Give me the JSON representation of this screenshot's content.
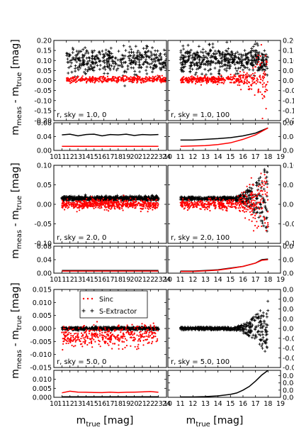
{
  "colors": {
    "sinc": "#ff0000",
    "sextractor": "#000000",
    "axes": "#000000",
    "background": "#ffffff"
  },
  "labels": {
    "ylabel": "m_meas - m_true [mag]",
    "xlabel": "m_true [mag]"
  },
  "legend": {
    "entries": [
      "Sinc",
      "S-Extractor"
    ],
    "location": "upper-right of bottom-left panel"
  },
  "chart_data": [
    {
      "type": "scatter",
      "position": "row1-left",
      "annotation": "r, sky = 1.0, 0",
      "xlim": [
        10,
        19
      ],
      "ylim": [
        -0.2,
        0.2
      ],
      "yticks": [
        "-0.20",
        "-0.15",
        "-0.10",
        "-0.05",
        "0.00",
        "0.05",
        "0.10",
        "0.15",
        "0.20"
      ],
      "series": [
        {
          "name": "S-Extractor",
          "x_range": [
            11,
            23
          ],
          "mean": 0.1,
          "spread": 0.045,
          "points": 600
        },
        {
          "name": "Sinc",
          "x_range": [
            11,
            23
          ],
          "mean": 0.005,
          "spread": 0.008,
          "points": 600
        }
      ]
    },
    {
      "type": "line",
      "position": "row1-left-rms",
      "xlim": [
        10,
        24
      ],
      "ylim": [
        0,
        0.08
      ],
      "yticks": [
        "0.00",
        "0.04",
        "0.08"
      ],
      "series": [
        {
          "name": "S-Extractor",
          "x": [
            11,
            12,
            13,
            14,
            15,
            16,
            17,
            18,
            19,
            20,
            21,
            22,
            23
          ],
          "values": [
            0.045,
            0.047,
            0.042,
            0.046,
            0.047,
            0.042,
            0.046,
            0.045,
            0.047,
            0.043,
            0.046,
            0.045,
            0.046
          ]
        },
        {
          "name": "Sinc",
          "x": [
            11,
            12,
            13,
            14,
            15,
            16,
            17,
            18,
            19,
            20,
            21,
            22,
            23
          ],
          "values": [
            0.012,
            0.012,
            0.012,
            0.012,
            0.012,
            0.012,
            0.012,
            0.012,
            0.012,
            0.012,
            0.012,
            0.012,
            0.012
          ]
        }
      ]
    },
    {
      "type": "scatter",
      "position": "row1-right",
      "annotation": "r, sky = 1.0, 100",
      "xlim": [
        10,
        19
      ],
      "ylim": [
        -0.2,
        0.2
      ],
      "yticks": [
        "-0.20",
        "-0.15",
        "-0.10",
        "-0.05",
        "0.00",
        "0.05",
        "0.10",
        "0.15",
        "0.20"
      ],
      "series": [
        {
          "name": "S-Extractor",
          "x_range": [
            11,
            18
          ],
          "mean": 0.1,
          "spread": 0.045,
          "points": 450
        },
        {
          "name": "Sinc",
          "x_range": [
            11,
            18
          ],
          "mean": 0.005,
          "spread": 0.008,
          "growth": 0.09,
          "points": 450
        }
      ]
    },
    {
      "type": "line",
      "position": "row1-right-rms",
      "xlim": [
        10,
        19
      ],
      "ylim": [
        0,
        0.08
      ],
      "yticks": [
        "0.00",
        "0.04",
        "0.08"
      ],
      "series": [
        {
          "name": "S-Extractor",
          "x": [
            11,
            12,
            13,
            14,
            15,
            16,
            17,
            18
          ],
          "values": [
            0.03,
            0.03,
            0.032,
            0.034,
            0.037,
            0.042,
            0.05,
            0.065
          ]
        },
        {
          "name": "Sinc",
          "x": [
            11,
            12,
            13,
            14,
            15,
            16,
            17,
            18
          ],
          "values": [
            0.012,
            0.013,
            0.014,
            0.017,
            0.022,
            0.032,
            0.045,
            0.065
          ]
        }
      ]
    },
    {
      "type": "scatter",
      "position": "row2-left",
      "annotation": "r, sky = 2.0, 0",
      "xlim": [
        10,
        24
      ],
      "ylim": [
        -0.1,
        0.1
      ],
      "yticks": [
        "-0.10",
        "-0.05",
        "0.00",
        "0.05",
        "0.10"
      ],
      "series": [
        {
          "name": "S-Extractor",
          "x_range": [
            11,
            23
          ],
          "mean": 0.015,
          "spread": 0.004,
          "points": 600
        },
        {
          "name": "Sinc",
          "x_range": [
            11,
            23
          ],
          "mean": 0.0,
          "spread": 0.006,
          "points": 600
        }
      ]
    },
    {
      "type": "line",
      "position": "row2-left-rms",
      "xlim": [
        10,
        24
      ],
      "ylim": [
        0,
        0.08
      ],
      "yticks": [
        "0.00",
        "0.04",
        "0.08"
      ],
      "series": [
        {
          "name": "S-Extractor",
          "x": [
            11,
            13,
            15,
            17,
            19,
            21,
            23
          ],
          "values": [
            0.008,
            0.008,
            0.008,
            0.008,
            0.008,
            0.008,
            0.008
          ]
        },
        {
          "name": "Sinc",
          "x": [
            11,
            13,
            15,
            17,
            19,
            21,
            23
          ],
          "values": [
            0.006,
            0.006,
            0.006,
            0.006,
            0.006,
            0.006,
            0.006
          ]
        }
      ]
    },
    {
      "type": "scatter",
      "position": "row2-right",
      "annotation": "r, sky = 2.0, 100",
      "xlim": [
        10,
        19
      ],
      "ylim": [
        -0.1,
        0.1
      ],
      "yticks": [
        "-0.10",
        "-0.05",
        "0.00",
        "0.05",
        "0.10"
      ],
      "series": [
        {
          "name": "S-Extractor",
          "x_range": [
            11,
            18
          ],
          "mean": 0.015,
          "spread": 0.004,
          "growth": 0.09,
          "points": 450
        },
        {
          "name": "Sinc",
          "x_range": [
            11,
            18
          ],
          "mean": 0.0,
          "spread": 0.006,
          "growth": 0.06,
          "points": 450
        }
      ]
    },
    {
      "type": "line",
      "position": "row2-right-rms",
      "xlim": [
        10,
        19
      ],
      "ylim": [
        0,
        0.08
      ],
      "yticks": [
        "0.00",
        "0.04",
        "0.08"
      ],
      "series": [
        {
          "name": "S-Extractor",
          "x": [
            11,
            12,
            13,
            14,
            15,
            16,
            17,
            17.5,
            18
          ],
          "values": [
            0.006,
            0.006,
            0.008,
            0.01,
            0.015,
            0.02,
            0.03,
            0.04,
            0.042
          ]
        },
        {
          "name": "Sinc",
          "x": [
            11,
            12,
            13,
            14,
            15,
            16,
            17,
            17.5,
            18
          ],
          "values": [
            0.005,
            0.005,
            0.007,
            0.009,
            0.014,
            0.02,
            0.03,
            0.038,
            0.04
          ]
        }
      ]
    },
    {
      "type": "scatter",
      "position": "row3-left",
      "annotation": "r, sky = 5.0, 0",
      "xlim": [
        10,
        24
      ],
      "ylim": [
        -0.015,
        0.015
      ],
      "yticks": [
        "-0.015",
        "-0.010",
        "-0.005",
        "0.000",
        "0.005",
        "0.010",
        "0.015"
      ],
      "series": [
        {
          "name": "S-Extractor",
          "x_range": [
            11,
            23
          ],
          "mean": 0.0,
          "spread": 0.0004,
          "points": 600
        },
        {
          "name": "Sinc",
          "x_range": [
            11,
            23
          ],
          "mean": -0.003,
          "spread": 0.002,
          "points": 400
        }
      ]
    },
    {
      "type": "line",
      "position": "row3-left-rms",
      "xlim": [
        10,
        24
      ],
      "ylim": [
        0,
        0.015
      ],
      "yticks": [
        "0.000",
        "0.005",
        "0.010"
      ],
      "series": [
        {
          "name": "S-Extractor",
          "x": [
            11,
            13,
            15,
            17,
            19,
            21,
            23
          ],
          "values": [
            0.0003,
            0.0003,
            0.0003,
            0.0003,
            0.0003,
            0.0003,
            0.0003
          ]
        },
        {
          "name": "Sinc",
          "x": [
            11,
            12,
            13,
            14,
            15,
            16,
            17,
            18,
            19,
            20,
            21,
            22,
            23
          ],
          "values": [
            0.0025,
            0.0034,
            0.0029,
            0.0028,
            0.0027,
            0.0026,
            0.0029,
            0.0026,
            0.0028,
            0.0029,
            0.003,
            0.0032,
            0.0028
          ]
        }
      ]
    },
    {
      "type": "scatter",
      "position": "row3-right",
      "annotation": "r, sky = 5.0, 100",
      "xlim": [
        10,
        19
      ],
      "ylim": [
        -0.08,
        0.08
      ],
      "yticks": [
        "-0.08",
        "-0.06",
        "-0.04",
        "-0.02",
        "0.00",
        "0.02",
        "0.04",
        "0.06",
        "0.08"
      ],
      "series": [
        {
          "name": "S-Extractor",
          "x_range": [
            11,
            18
          ],
          "mean": 0.0,
          "spread": 0.003,
          "growth": 0.055,
          "points": 450
        }
      ]
    },
    {
      "type": "line",
      "position": "row3-right-rms",
      "xlim": [
        10,
        19
      ],
      "ylim": [
        0,
        0.075
      ],
      "yticks": [
        "0.00",
        "0.02",
        "0.04",
        "0.06"
      ],
      "series": [
        {
          "name": "S-Extractor",
          "x": [
            11,
            12,
            13,
            14,
            15,
            15.5,
            16,
            16.5,
            17,
            17.5,
            18
          ],
          "values": [
            0.001,
            0.001,
            0.002,
            0.004,
            0.008,
            0.012,
            0.02,
            0.03,
            0.045,
            0.062,
            0.075
          ]
        }
      ]
    }
  ],
  "xticks_left": [
    "10",
    "11",
    "12",
    "13",
    "14",
    "15",
    "16",
    "17",
    "18",
    "19",
    "20",
    "21",
    "22",
    "23",
    "24"
  ],
  "xticks_right": [
    "10",
    "11",
    "12",
    "13",
    "14",
    "15",
    "16",
    "17",
    "18",
    "19"
  ]
}
